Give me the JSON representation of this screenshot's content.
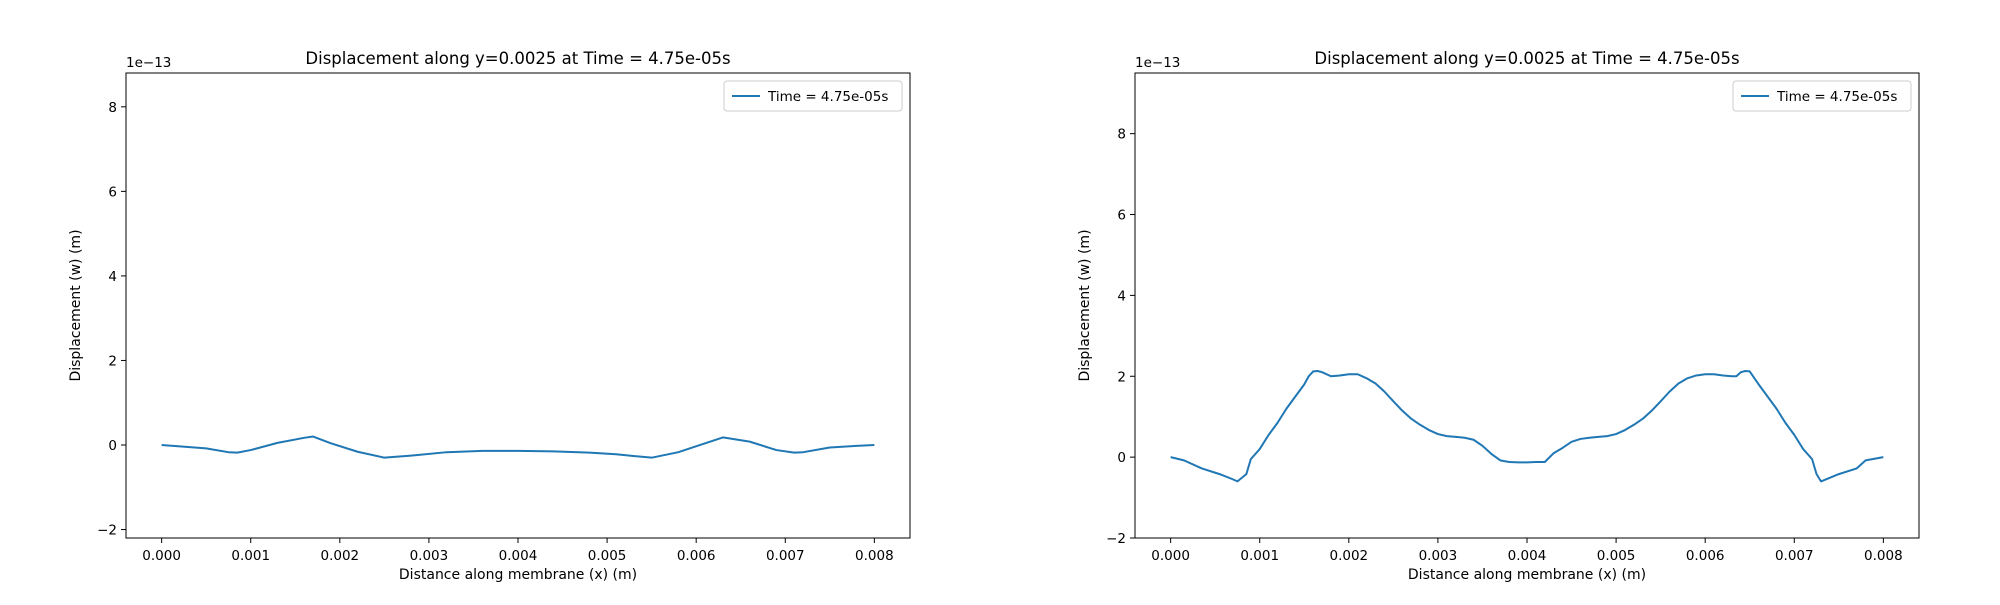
{
  "chart_data": [
    {
      "type": "line",
      "title": "Displacement along y=0.0025 at Time = 4.75e-05s",
      "xlabel": "Distance along membrane (x) (m)",
      "ylabel": "Displacement (w) (m)",
      "y_multiplier_label": "1e−13",
      "xlim": [
        -0.0003,
        0.0004
      ],
      "xlim_values": [
        -0.0004,
        0.0084
      ],
      "ylim": [
        -2.2,
        8.8
      ],
      "x_ticks": [
        0.0,
        0.001,
        0.002,
        0.003,
        0.004,
        0.005,
        0.006,
        0.007,
        0.008
      ],
      "x_tick_labels": [
        "0.000",
        "0.001",
        "0.002",
        "0.003",
        "0.004",
        "0.005",
        "0.006",
        "0.007",
        "0.008"
      ],
      "y_ticks": [
        -2,
        0,
        2,
        4,
        6,
        8
      ],
      "y_tick_labels": [
        "−2",
        "0",
        "2",
        "4",
        "6",
        "8"
      ],
      "grid": false,
      "legend": "top-right",
      "series": [
        {
          "name": "Time = 4.75e-05s",
          "color": "#1f77b4",
          "x": [
            0.0,
            0.0005,
            0.00075,
            0.00085,
            0.001,
            0.0013,
            0.0016,
            0.0017,
            0.0019,
            0.0022,
            0.0025,
            0.0028,
            0.0032,
            0.0036,
            0.004,
            0.0044,
            0.0048,
            0.0051,
            0.0055,
            0.0058,
            0.0061,
            0.0063,
            0.0066,
            0.0069,
            0.0071,
            0.0072,
            0.0075,
            0.0078,
            0.008
          ],
          "y": [
            0.0,
            -0.08,
            -0.17,
            -0.18,
            -0.12,
            0.05,
            0.17,
            0.2,
            0.04,
            -0.16,
            -0.3,
            -0.25,
            -0.17,
            -0.14,
            -0.14,
            -0.15,
            -0.18,
            -0.22,
            -0.3,
            -0.17,
            0.04,
            0.18,
            0.08,
            -0.12,
            -0.18,
            -0.17,
            -0.06,
            -0.02,
            0.0
          ]
        }
      ]
    },
    {
      "type": "line",
      "title": "Displacement along y=0.0025 at Time = 4.75e-05s",
      "xlabel": "Distance along membrane (x) (m)",
      "ylabel": "Displacement (w) (m)",
      "y_multiplier_label": "1e−13",
      "xlim_values": [
        -0.0004,
        0.0084
      ],
      "ylim": [
        -2.0,
        9.5
      ],
      "x_ticks": [
        0.0,
        0.001,
        0.002,
        0.003,
        0.004,
        0.005,
        0.006,
        0.007,
        0.008
      ],
      "x_tick_labels": [
        "0.000",
        "0.001",
        "0.002",
        "0.003",
        "0.004",
        "0.005",
        "0.006",
        "0.007",
        "0.008"
      ],
      "y_ticks": [
        -2,
        0,
        2,
        4,
        6,
        8
      ],
      "y_tick_labels": [
        "−2",
        "0",
        "2",
        "4",
        "6",
        "8"
      ],
      "grid": false,
      "legend": "top-right",
      "series": [
        {
          "name": "Time = 4.75e-05s",
          "color": "#1f77b4",
          "x": [
            0.0,
            0.00015,
            0.00035,
            0.00055,
            0.0007,
            0.00075,
            0.00085,
            0.0009,
            0.001,
            0.0011,
            0.0012,
            0.0013,
            0.0014,
            0.0015,
            0.00155,
            0.0016,
            0.00165,
            0.0017,
            0.0018,
            0.0019,
            0.002,
            0.0021,
            0.0022,
            0.0023,
            0.0024,
            0.0025,
            0.0026,
            0.0027,
            0.0028,
            0.0029,
            0.003,
            0.0031,
            0.0032,
            0.0033,
            0.0034,
            0.0035,
            0.0036,
            0.0037,
            0.0038,
            0.0039,
            0.004,
            0.0041,
            0.0042,
            0.0043,
            0.0044,
            0.0045,
            0.0046,
            0.0047,
            0.0048,
            0.0049,
            0.005,
            0.0051,
            0.0052,
            0.0053,
            0.0054,
            0.0055,
            0.0056,
            0.0057,
            0.0058,
            0.0059,
            0.006,
            0.0061,
            0.0062,
            0.0063,
            0.00635,
            0.0064,
            0.00645,
            0.0065,
            0.0066,
            0.0067,
            0.0068,
            0.0069,
            0.007,
            0.0071,
            0.0072,
            0.00725,
            0.0073,
            0.0075,
            0.0077,
            0.0078,
            0.008
          ],
          "y": [
            0.0,
            -0.08,
            -0.28,
            -0.42,
            -0.55,
            -0.6,
            -0.42,
            -0.05,
            0.2,
            0.55,
            0.85,
            1.2,
            1.5,
            1.8,
            2.0,
            2.12,
            2.13,
            2.1,
            2.0,
            2.02,
            2.05,
            2.05,
            1.95,
            1.82,
            1.62,
            1.38,
            1.15,
            0.95,
            0.8,
            0.67,
            0.57,
            0.52,
            0.5,
            0.48,
            0.43,
            0.28,
            0.08,
            -0.08,
            -0.12,
            -0.13,
            -0.13,
            -0.12,
            -0.12,
            0.1,
            0.23,
            0.38,
            0.45,
            0.48,
            0.5,
            0.52,
            0.57,
            0.67,
            0.8,
            0.95,
            1.15,
            1.38,
            1.62,
            1.82,
            1.95,
            2.02,
            2.05,
            2.05,
            2.02,
            2.0,
            2.0,
            2.1,
            2.13,
            2.12,
            1.8,
            1.5,
            1.2,
            0.85,
            0.55,
            0.2,
            -0.05,
            -0.42,
            -0.6,
            -0.42,
            -0.28,
            -0.08,
            0.0
          ]
        }
      ]
    }
  ]
}
